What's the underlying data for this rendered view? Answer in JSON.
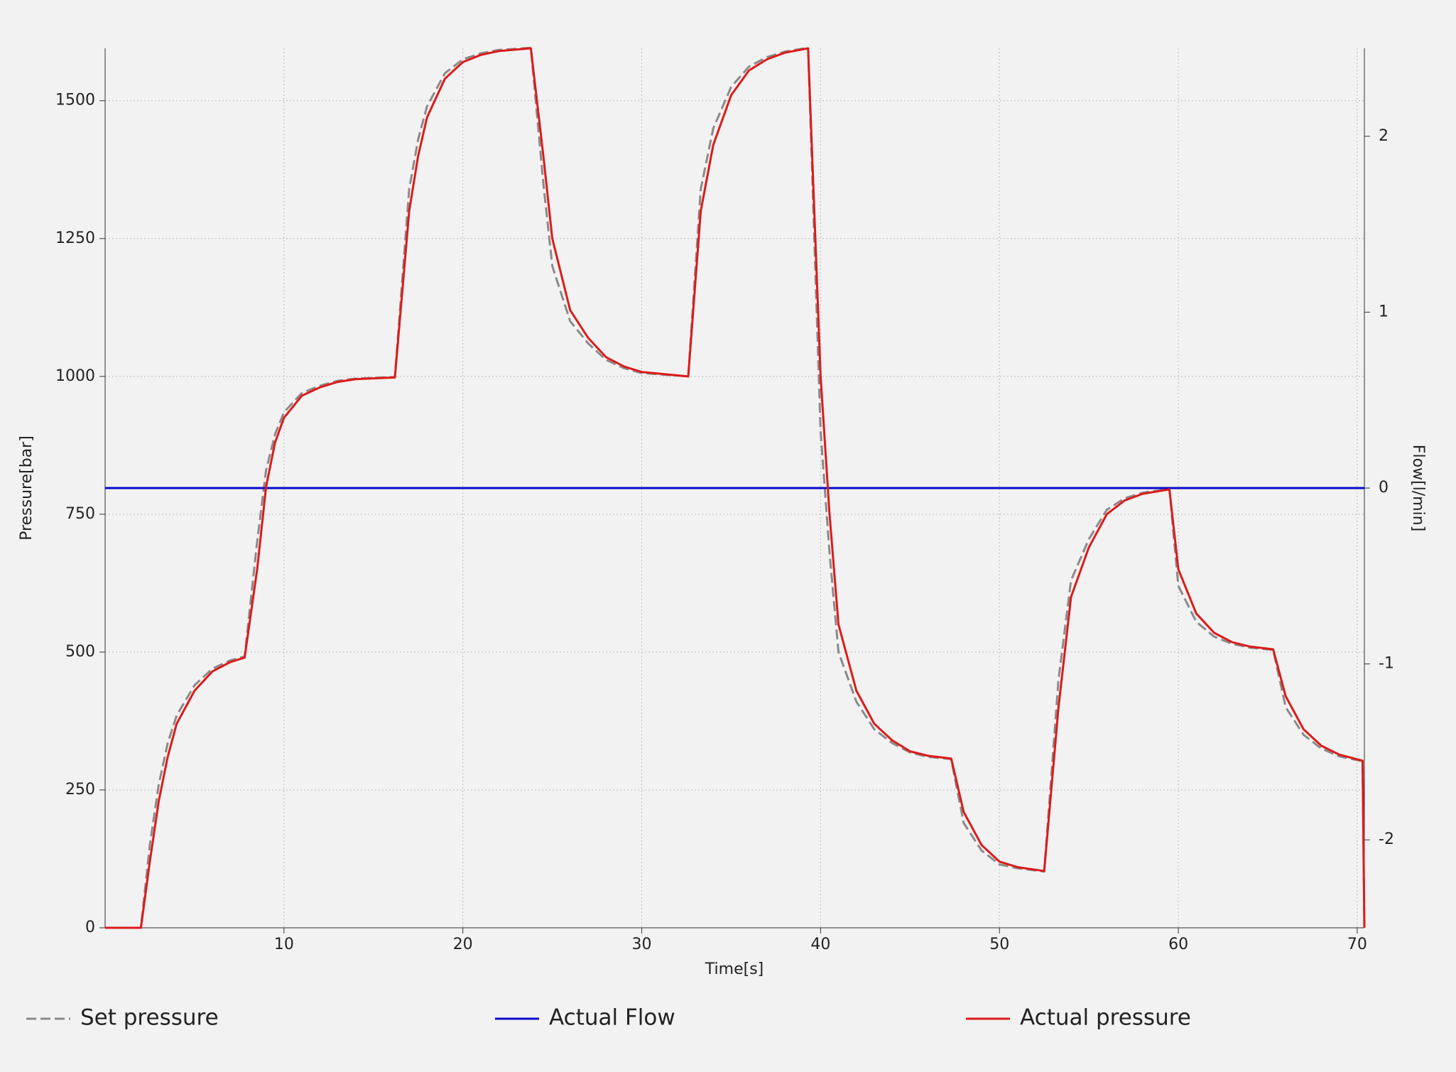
{
  "chart_data": {
    "type": "line",
    "xlabel": "Time[s]",
    "ylabel": "Pressure[bar]",
    "y2label": "Flow[l/min]",
    "x": [
      0,
      2,
      2.5,
      3,
      3.5,
      4,
      5,
      6,
      7,
      7.8,
      8.5,
      9,
      9.5,
      10,
      11,
      12,
      13,
      14,
      16.2,
      17,
      17.5,
      18,
      19,
      20,
      21,
      22,
      23.8,
      24.5,
      25,
      26,
      27,
      28,
      29,
      30,
      32.6,
      33.3,
      34,
      35,
      36,
      37,
      38,
      39.3,
      40,
      40.5,
      41,
      42,
      43,
      44,
      45,
      46,
      47.3,
      48,
      49,
      50,
      51,
      52.5,
      53.3,
      54,
      55,
      56,
      57,
      58,
      59.5,
      60,
      61,
      62,
      63,
      64,
      65.3,
      66,
      67,
      68,
      69,
      70.3,
      70.4
    ],
    "series": [
      {
        "name": "Set pressure",
        "color": "#8a8a8a",
        "dashed": true,
        "values": [
          0,
          0,
          150,
          260,
          335,
          385,
          440,
          470,
          485,
          492,
          700,
          830,
          895,
          935,
          970,
          983,
          992,
          996,
          999,
          1340,
          1430,
          1490,
          1550,
          1575,
          1586,
          1592,
          1596,
          1350,
          1200,
          1100,
          1060,
          1030,
          1015,
          1006,
          1000,
          1340,
          1450,
          1525,
          1562,
          1579,
          1589,
          1596,
          900,
          680,
          500,
          410,
          360,
          335,
          318,
          310,
          306,
          190,
          140,
          115,
          108,
          102,
          450,
          630,
          705,
          758,
          779,
          789,
          796,
          620,
          555,
          528,
          515,
          508,
          504,
          400,
          350,
          325,
          311,
          302,
          0
        ]
      },
      {
        "name": "Actual Flow",
        "color": "#0a0acc",
        "axis": "y2",
        "x": [
          0,
          70.4
        ],
        "values": [
          0,
          0
        ]
      },
      {
        "name": "Actual pressure",
        "color": "#dd1a1a",
        "values": [
          0,
          0,
          120,
          230,
          310,
          370,
          430,
          465,
          482,
          490,
          650,
          800,
          880,
          925,
          965,
          980,
          990,
          995,
          998,
          1300,
          1400,
          1470,
          1540,
          1570,
          1583,
          1590,
          1595,
          1400,
          1250,
          1120,
          1070,
          1035,
          1018,
          1008,
          1000,
          1300,
          1420,
          1510,
          1555,
          1575,
          1587,
          1595,
          1000,
          750,
          550,
          430,
          370,
          340,
          320,
          312,
          307,
          210,
          150,
          120,
          110,
          103,
          400,
          600,
          690,
          750,
          775,
          787,
          795,
          650,
          570,
          535,
          518,
          510,
          505,
          420,
          360,
          330,
          314,
          303,
          0
        ]
      }
    ],
    "xlim": [
      0,
      70.4
    ],
    "xticks": [
      10,
      20,
      30,
      40,
      50,
      60,
      70
    ],
    "ylim": [
      0,
      1595
    ],
    "yticks": [
      0,
      250,
      500,
      750,
      1000,
      1250,
      1500
    ],
    "y2lim": [
      -2.5,
      2.5
    ],
    "y2ticks": [
      -2,
      -1,
      0,
      1,
      2
    ],
    "grid": true
  }
}
